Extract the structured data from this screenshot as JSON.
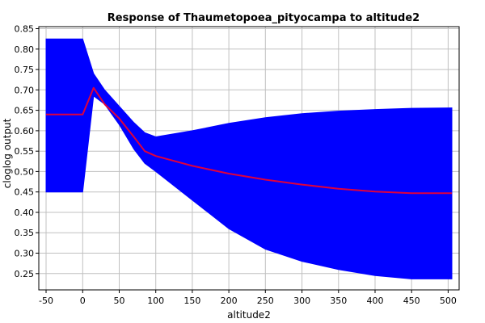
{
  "chart_data": {
    "type": "area",
    "title": "Response of Thaumetopoea_pityocampa to altitude2",
    "xlabel": "altitude2",
    "ylabel": "cloglog output",
    "xlim": [
      -60,
      515
    ],
    "ylim": [
      0.21,
      0.855
    ],
    "xticks": [
      -50,
      0,
      50,
      100,
      150,
      200,
      250,
      300,
      350,
      400,
      450,
      500
    ],
    "yticks": [
      0.25,
      0.3,
      0.35,
      0.4,
      0.45,
      0.5,
      0.55,
      0.6,
      0.65,
      0.7,
      0.75,
      0.8,
      0.85
    ],
    "grid": true,
    "band_color": "#0000ff",
    "line_color": "#e0003c",
    "series": [
      {
        "role": "band",
        "x": [
          -50,
          0,
          15,
          30,
          50,
          70,
          85,
          100,
          150,
          200,
          250,
          300,
          350,
          400,
          450,
          505
        ],
        "upper": [
          0.825,
          0.825,
          0.74,
          0.7,
          0.66,
          0.62,
          0.595,
          0.585,
          0.6,
          0.618,
          0.632,
          0.642,
          0.648,
          0.652,
          0.655,
          0.656
        ],
        "lower": [
          0.45,
          0.45,
          0.685,
          0.665,
          0.615,
          0.555,
          0.52,
          0.5,
          0.43,
          0.36,
          0.31,
          0.28,
          0.26,
          0.245,
          0.237,
          0.237
        ]
      },
      {
        "role": "mean",
        "x": [
          -50,
          0,
          15,
          30,
          50,
          70,
          85,
          100,
          150,
          200,
          250,
          300,
          350,
          400,
          450,
          505
        ],
        "y": [
          0.64,
          0.64,
          0.705,
          0.665,
          0.63,
          0.585,
          0.55,
          0.538,
          0.514,
          0.495,
          0.48,
          0.468,
          0.458,
          0.451,
          0.447,
          0.447
        ]
      }
    ]
  }
}
